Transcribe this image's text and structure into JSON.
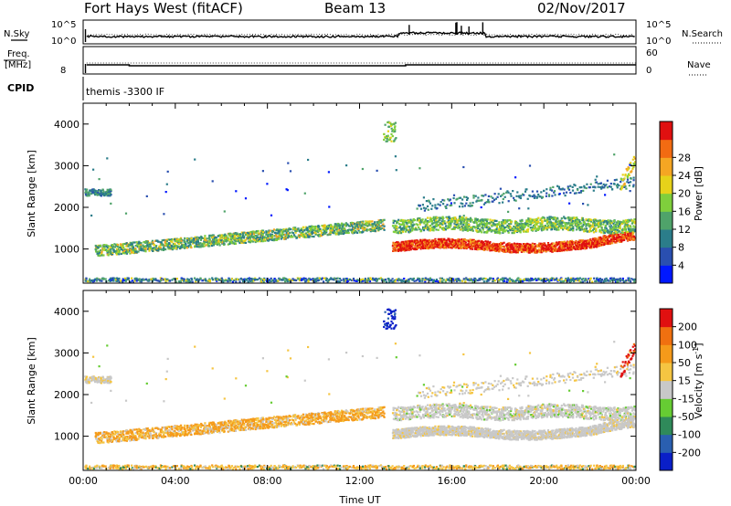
{
  "header": {
    "title_left": "Fort Hays West (fitACF)",
    "title_center": "Beam 13",
    "title_right": "02/Nov/2017"
  },
  "strip_panels": {
    "nsky_label": "N.Sky",
    "nsearch_label": "N.Search",
    "freq_label_1": "Freq.",
    "freq_label_2": "[MHz]",
    "nave_label": "Nave",
    "cpid_label": "CPID",
    "cpid_value": "themis -3300 IF",
    "noise_ticks_left": [
      "10^5",
      "10^0"
    ],
    "noise_ticks_right": [
      "10^5",
      "10^0"
    ],
    "freq_ticks_left": [
      "8"
    ],
    "nave_ticks_right": [
      "60",
      "0"
    ]
  },
  "chart_data": [
    {
      "type": "heatmap",
      "name": "power",
      "ylabel": "Slant Range [km]",
      "xlabel": "",
      "ylim": [
        180,
        4500
      ],
      "yticks": [
        1000,
        2000,
        3000,
        4000
      ],
      "xlim": [
        0,
        24
      ],
      "xticks": [
        "00:00",
        "04:00",
        "08:00",
        "12:00",
        "16:00",
        "20:00",
        "00:00"
      ],
      "colorbar": {
        "label": "Power [dB]",
        "ticks": [
          "4",
          "8",
          "12",
          "16",
          "20",
          "24",
          "28"
        ],
        "colors": [
          "#0018ff",
          "#2a4fb0",
          "#2b7d8a",
          "#4fa36a",
          "#7fcf3c",
          "#e6d21a",
          "#f5a623",
          "#f26b12",
          "#e01010"
        ]
      }
    },
    {
      "type": "heatmap",
      "name": "velocity",
      "ylabel": "Slant Range [km]",
      "xlabel": "Time UT",
      "ylim": [
        180,
        4500
      ],
      "yticks": [
        1000,
        2000,
        3000,
        4000
      ],
      "xlim": [
        0,
        24
      ],
      "xticks": [
        "00:00",
        "04:00",
        "08:00",
        "12:00",
        "16:00",
        "20:00",
        "00:00"
      ],
      "colorbar": {
        "label": "Velocity [m s",
        "label_sup": "-1",
        "label_close": "]",
        "ticks": [
          "200",
          "100",
          "50",
          "15",
          "-15",
          "-50",
          "-100",
          "-200"
        ],
        "colors": [
          "#0a1fc8",
          "#2a5fb0",
          "#2f8a5a",
          "#66cc33",
          "#c8c8c8",
          "#f5c542",
          "#f59a1a",
          "#f07010",
          "#e01010"
        ]
      }
    }
  ]
}
